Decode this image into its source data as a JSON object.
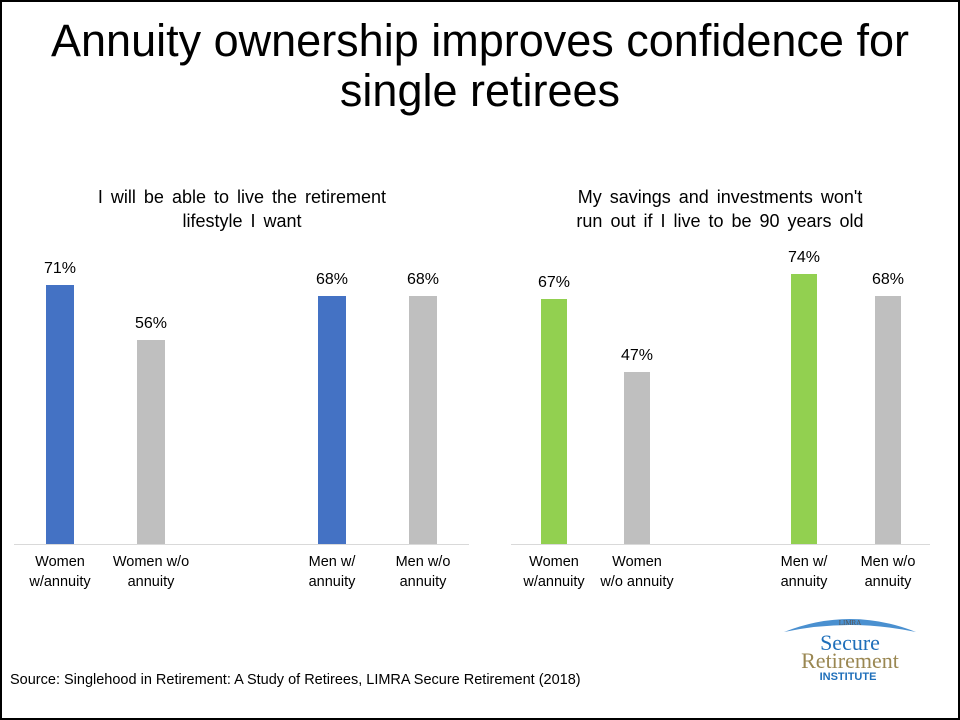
{
  "title": "Annuity ownership improves confidence for single retirees",
  "title_line1": "Annuity ownership improves confidence for",
  "title_line2": "single retirees",
  "source": "Source: Singlehood in Retirement: A Study of Retirees, LIMRA Secure Retirement (2018)",
  "logo": {
    "top_text": "LIMRA",
    "line1": "Secure",
    "line2": "Retirement",
    "line3": "INSTITUTE",
    "blue": "#1f6fba",
    "gold": "#9a8752"
  },
  "colors": {
    "blue": "#4472c4",
    "green": "#92d050",
    "gray": "#bfbfbf"
  },
  "chart_data": [
    {
      "type": "bar",
      "title": "I will be able to live the retirement lifestyle I want",
      "title_line1": "I will be able to live the retirement",
      "title_line2": "lifestyle I want",
      "categories": [
        "Women w/annuity",
        "Women w/o annuity",
        "Men w/ annuity",
        "Men w/o annuity"
      ],
      "category_lines": [
        [
          "Women",
          "w/annuity"
        ],
        [
          "Women w/o",
          "annuity"
        ],
        [
          "Men w/",
          "annuity"
        ],
        [
          "Men w/o",
          "annuity"
        ]
      ],
      "values": [
        71,
        56,
        68,
        68
      ],
      "labels": [
        "71%",
        "56%",
        "68%",
        "68%"
      ],
      "bar_colors": [
        "#4472c4",
        "#bfbfbf",
        "#4472c4",
        "#bfbfbf"
      ],
      "xlabel": "",
      "ylabel": "",
      "ylim": [
        0,
        100
      ],
      "grid": false,
      "legend": "none"
    },
    {
      "type": "bar",
      "title": "My savings and investments won't run out if I live to be 90 years old",
      "title_line1": "My savings and investments won't",
      "title_line2": "run out if I live to be 90 years old",
      "categories": [
        "Women w/annuity",
        "Women w/o annuity",
        "Men w/ annuity",
        "Men w/o annuity"
      ],
      "category_lines": [
        [
          "Women",
          "w/annuity"
        ],
        [
          "Women",
          "w/o annuity"
        ],
        [
          "Men w/",
          "annuity"
        ],
        [
          "Men w/o",
          "annuity"
        ]
      ],
      "values": [
        67,
        47,
        74,
        68
      ],
      "labels": [
        "67%",
        "47%",
        "74%",
        "68%"
      ],
      "bar_colors": [
        "#92d050",
        "#bfbfbf",
        "#92d050",
        "#bfbfbf"
      ],
      "xlabel": "",
      "ylabel": "",
      "ylim": [
        0,
        100
      ],
      "grid": false,
      "legend": "none"
    }
  ]
}
